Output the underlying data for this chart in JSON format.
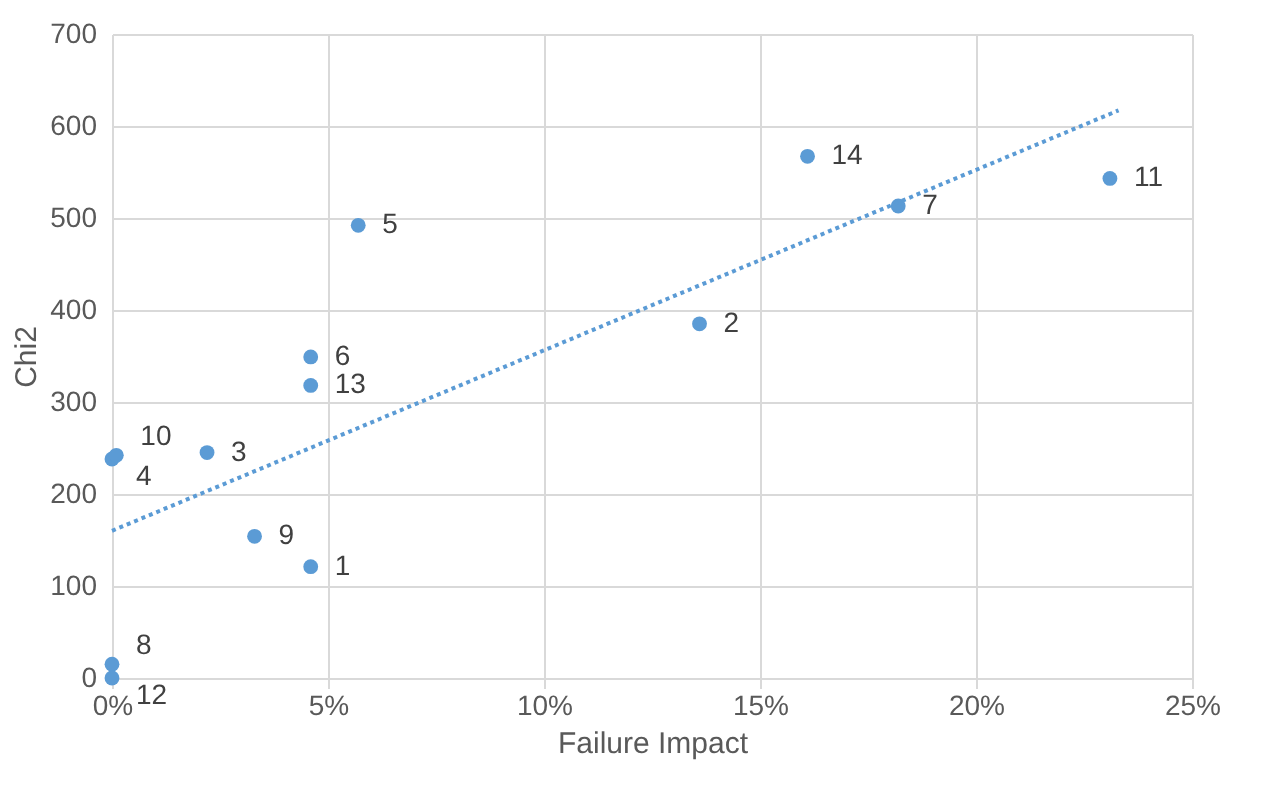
{
  "chart_data": {
    "type": "scatter",
    "xlabel": "Failure Impact",
    "ylabel": "Chi2",
    "series": [
      {
        "color": "#5b9bd5",
        "marker": "circle",
        "x": [
          4.6,
          13.6,
          2.2,
          0,
          5.7,
          4.6,
          18.2,
          0,
          3.3,
          0.1,
          23.1,
          0,
          4.6,
          16.1
        ],
        "values": [
          121,
          385,
          245,
          238,
          492,
          349,
          513,
          15,
          154,
          242,
          543,
          0,
          318,
          567
        ]
      },
      {
        "type": "line",
        "color": "#5b9bd5",
        "line_style": "dotted",
        "x": [
          0,
          23.3
        ],
        "values": [
          160,
          617
        ]
      }
    ],
    "annotations": [
      {
        "text": "1",
        "x": 4.6,
        "y": 121
      },
      {
        "text": "2",
        "x": 13.6,
        "y": 385
      },
      {
        "text": "3",
        "x": 2.2,
        "y": 245
      },
      {
        "text": "4",
        "x": 0,
        "y": 238
      },
      {
        "text": "5",
        "x": 5.7,
        "y": 492
      },
      {
        "text": "6",
        "x": 4.6,
        "y": 349
      },
      {
        "text": "7",
        "x": 18.2,
        "y": 513
      },
      {
        "text": "8",
        "x": 0,
        "y": 15
      },
      {
        "text": "9",
        "x": 3.3,
        "y": 154
      },
      {
        "text": "10",
        "x": 0.1,
        "y": 242
      },
      {
        "text": "11",
        "x": 23.1,
        "y": 543
      },
      {
        "text": "12",
        "x": 0,
        "y": 0
      },
      {
        "text": "13",
        "x": 4.6,
        "y": 318
      },
      {
        "text": "14",
        "x": 16.1,
        "y": 567
      }
    ],
    "xlim": [
      0,
      25
    ],
    "xticks": [
      {
        "value": 0,
        "label": "0%"
      },
      {
        "value": 5,
        "label": "5%"
      },
      {
        "value": 10,
        "label": "10%"
      },
      {
        "value": 15,
        "label": "15%"
      },
      {
        "value": 20,
        "label": "20%"
      },
      {
        "value": 25,
        "label": "25%"
      }
    ],
    "ylim": [
      0,
      700
    ],
    "yticks": [
      0,
      100,
      200,
      300,
      400,
      500,
      600,
      700
    ],
    "grid": true
  }
}
